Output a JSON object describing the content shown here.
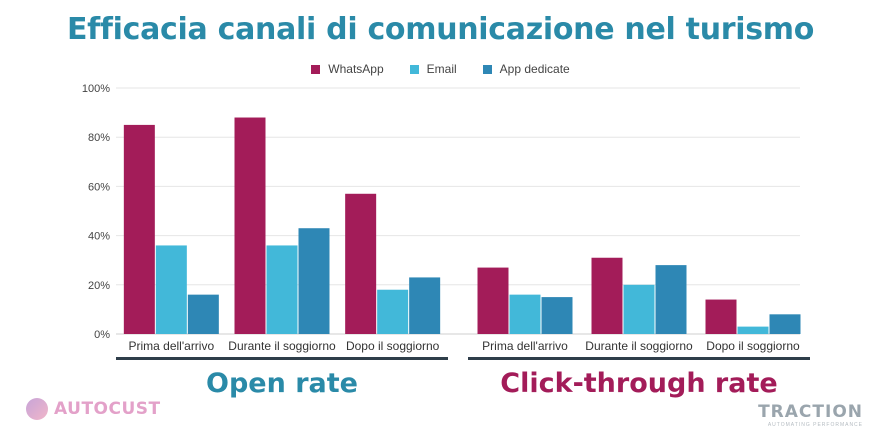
{
  "title": "Efficacia canali di comunicazione nel turismo",
  "colors": {
    "WhatsApp": "#a31c59",
    "Email": "#42b8d9",
    "App dedicate": "#2e87b5",
    "title": "#2a8aa8",
    "open_rate": "#2a8aa8",
    "ctr": "#a31c59"
  },
  "legend": [
    "WhatsApp",
    "Email",
    "App dedicate"
  ],
  "chart_data": {
    "type": "bar",
    "categories": [
      "Prima dell'arrivo",
      "Durante il soggiorno",
      "Dopo il soggiorno",
      "Prima dell'arrivo",
      "Durante il soggiorno",
      "Dopo il soggiorno"
    ],
    "groups": [
      "Open rate",
      "Click-through rate"
    ],
    "series": [
      {
        "name": "WhatsApp",
        "values": [
          85,
          88,
          57,
          27,
          31,
          14
        ]
      },
      {
        "name": "Email",
        "values": [
          36,
          36,
          18,
          16,
          20,
          3
        ]
      },
      {
        "name": "App dedicate",
        "values": [
          16,
          43,
          23,
          15,
          28,
          8
        ]
      }
    ],
    "ylim": [
      0,
      100
    ],
    "yticks": [
      "0%",
      "20%",
      "40%",
      "60%",
      "80%",
      "100%"
    ],
    "grid": true,
    "legend_position": "top-center"
  },
  "group_labels": {
    "left": "Open rate",
    "right": "Click-through rate"
  },
  "logos": {
    "left": "AUTOCUST",
    "right": "TRACTION",
    "right_tagline": "AUTOMATING PERFORMANCE"
  }
}
